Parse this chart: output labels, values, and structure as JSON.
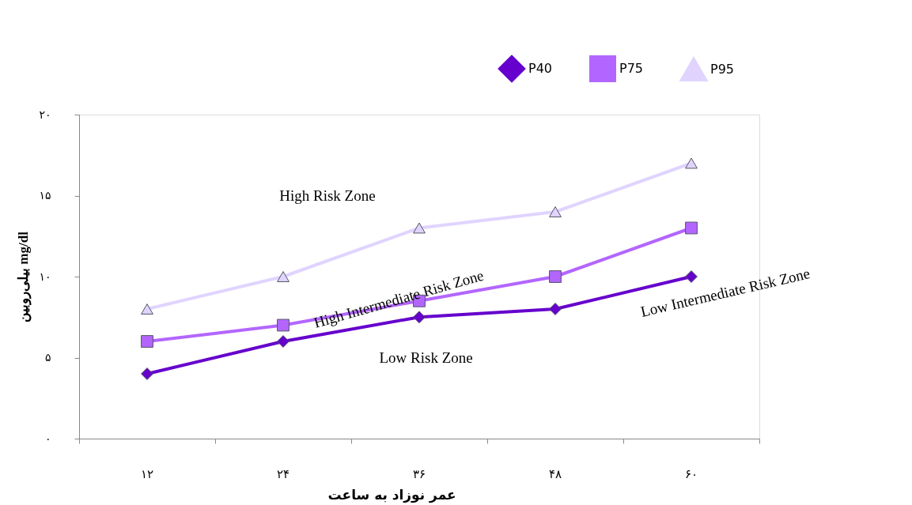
{
  "chart_data": {
    "type": "line",
    "categories": [
      "۱۲",
      "۲۴",
      "۳۶",
      "۴۸",
      "۶۰"
    ],
    "xlabel": "عمر نوزاد به ساعت",
    "ylabel": "بیلی‌روبین mg/dl",
    "ylim": [
      0,
      20
    ],
    "yticks": [
      {
        "value": 0,
        "label": "۰"
      },
      {
        "value": 5,
        "label": "۵"
      },
      {
        "value": 10,
        "label": "۱۰"
      },
      {
        "value": 15,
        "label": "۱۵"
      },
      {
        "value": 20,
        "label": "۲۰"
      }
    ],
    "grid": false,
    "legend": "top right",
    "line_style": "solid",
    "series": [
      {
        "name": "P40",
        "color": "#6600cc",
        "marker": "diamond",
        "values": [
          4,
          6,
          7.5,
          8,
          10
        ]
      },
      {
        "name": "P75",
        "color": "#b366ff",
        "marker": "square",
        "values": [
          6,
          7,
          8.5,
          10,
          13
        ]
      },
      {
        "name": "P95",
        "color": "#e0d4ff",
        "marker": "triangle",
        "values": [
          8,
          10,
          13,
          14,
          17
        ]
      }
    ],
    "annotations": [
      "High Risk Zone",
      "High Intermediate Risk Zone",
      "Low Intermediate Risk Zone",
      "Low Risk Zone"
    ]
  }
}
